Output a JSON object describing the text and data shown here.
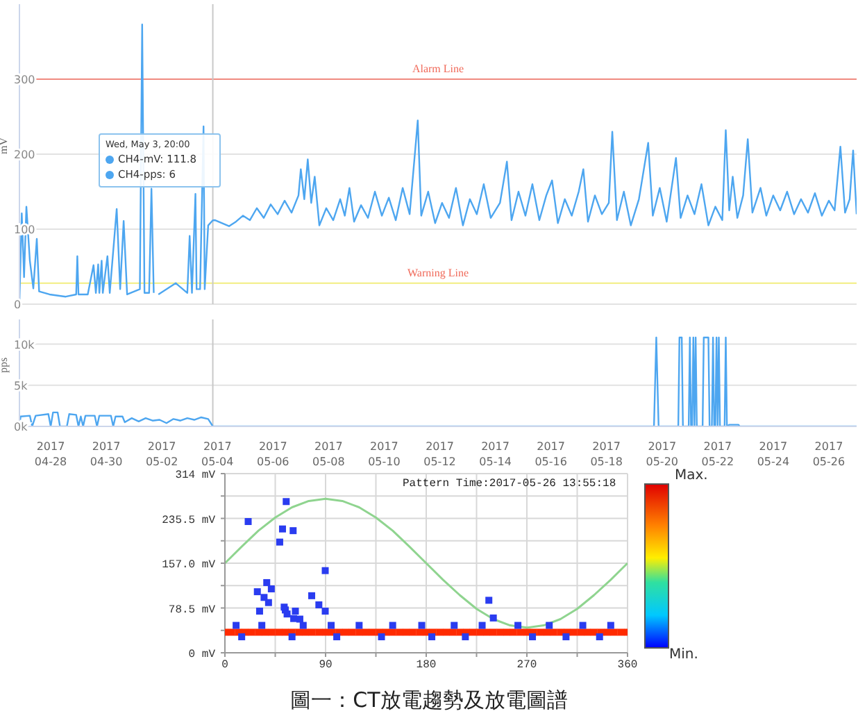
{
  "chart_data": [
    {
      "type": "line",
      "ylabel": "mV",
      "color": "#4da6f0",
      "marker": "none",
      "line_style": "solid",
      "grid": "y",
      "tick_labels": "y",
      "x": [
        "2017-04-26T21:00",
        "2017-04-26T23:00",
        "2017-04-27T01:00",
        "2017-04-27T03:00",
        "2017-04-27T06:00",
        "2017-04-27T09:00",
        "2017-04-27T12:00",
        "2017-04-27T14:00",
        "2017-04-27T23:00",
        "2017-04-28T13:00",
        "2017-04-28T22:00",
        "2017-04-28T23:00",
        "2017-04-29T00:00",
        "2017-04-29T08:00",
        "2017-04-29T13:00",
        "2017-04-29T15:00",
        "2017-04-29T17:00",
        "2017-04-29T18:00",
        "2017-04-29T20:00",
        "2017-04-29T21:00",
        "2017-04-30T01:00",
        "2017-04-30T03:00",
        "2017-04-30T09:00",
        "2017-04-30T12:00",
        "2017-04-30T15:00",
        "2017-04-30T18:00",
        "2017-05-01T05:00",
        "2017-05-01T07:00",
        "2017-05-01T09:00",
        "2017-05-01T13:00",
        "2017-05-01T15:00",
        "2017-05-01T17:00",
        "2017-05-01T19:00",
        "2017-05-01T21:00",
        "2017-05-02T12:00",
        "2017-05-02T22:00",
        "2017-05-03T00:00",
        "2017-05-03T02:00",
        "2017-05-03T05:00",
        "2017-05-03T06:00",
        "2017-05-03T09:00",
        "2017-05-03T12:00",
        "2017-05-03T13:00",
        "2017-05-03T16:00",
        "2017-05-03T20:00",
        "2017-05-03T22:00",
        "2017-05-04T04:00",
        "2017-05-04T10:00",
        "2017-05-04T16:00",
        "2017-05-04T22:00",
        "2017-05-05T04:00",
        "2017-05-05T10:00",
        "2017-05-05T16:00",
        "2017-05-05T22:00",
        "2017-05-06T04:00",
        "2017-05-06T10:00",
        "2017-05-06T16:00",
        "2017-05-06T22:00",
        "2017-05-07T00:00",
        "2017-05-07T03:00",
        "2017-05-07T06:00",
        "2017-05-07T09:00",
        "2017-05-07T12:00",
        "2017-05-07T16:00",
        "2017-05-07T22:00",
        "2017-05-08T04:00",
        "2017-05-08T10:00",
        "2017-05-08T14:00",
        "2017-05-08T18:00",
        "2017-05-08T22:00",
        "2017-05-09T04:00",
        "2017-05-09T10:00",
        "2017-05-09T16:00",
        "2017-05-09T22:00",
        "2017-05-10T04:00",
        "2017-05-10T10:00",
        "2017-05-10T16:00",
        "2017-05-10T22:00",
        "2017-05-11T05:00",
        "2017-05-11T08:00",
        "2017-05-11T14:00",
        "2017-05-11T20:00",
        "2017-05-12T02:00",
        "2017-05-12T08:00",
        "2017-05-12T14:00",
        "2017-05-12T20:00",
        "2017-05-13T02:00",
        "2017-05-13T08:00",
        "2017-05-13T14:00",
        "2017-05-13T20:00",
        "2017-05-14T04:00",
        "2017-05-14T10:00",
        "2017-05-14T14:00",
        "2017-05-14T20:00",
        "2017-05-15T02:00",
        "2017-05-15T08:00",
        "2017-05-15T14:00",
        "2017-05-15T20:00",
        "2017-05-16T01:00",
        "2017-05-16T06:00",
        "2017-05-16T12:00",
        "2017-05-16T18:00",
        "2017-05-17T00:00",
        "2017-05-17T04:00",
        "2017-05-17T08:00",
        "2017-05-17T14:00",
        "2017-05-17T20:00",
        "2017-05-18T02:00",
        "2017-05-18T05:00",
        "2017-05-18T09:00",
        "2017-05-18T15:00",
        "2017-05-18T21:00",
        "2017-05-19T04:00",
        "2017-05-19T12:00",
        "2017-05-19T16:00",
        "2017-05-19T22:00",
        "2017-05-20T04:00",
        "2017-05-20T12:00",
        "2017-05-20T16:00",
        "2017-05-20T22:00",
        "2017-05-21T04:00",
        "2017-05-21T10:00",
        "2017-05-21T16:00",
        "2017-05-21T22:00",
        "2017-05-22T04:00",
        "2017-05-22T07:00",
        "2017-05-22T10:00",
        "2017-05-22T13:00",
        "2017-05-22T17:00",
        "2017-05-22T22:00",
        "2017-05-23T02:00",
        "2017-05-23T06:00",
        "2017-05-23T13:00",
        "2017-05-23T18:00",
        "2017-05-24T00:00",
        "2017-05-24T06:00",
        "2017-05-24T12:00",
        "2017-05-24T18:00",
        "2017-05-25T00:00",
        "2017-05-25T06:00",
        "2017-05-25T12:00",
        "2017-05-25T18:00",
        "2017-05-26T00:00",
        "2017-05-26T05:00",
        "2017-05-26T10:00",
        "2017-05-26T14:00",
        "2017-05-26T18:00",
        "2017-05-26T21:00",
        "2017-05-27T00:00"
      ],
      "values": [
        2,
        121,
        36,
        130,
        58,
        21,
        87,
        17,
        13,
        10,
        13,
        64,
        13,
        13,
        52,
        15,
        53,
        15,
        58,
        15,
        64,
        15,
        127,
        20,
        111,
        13,
        20,
        373,
        15,
        15,
        154,
        15,
        null,
        13,
        28,
        15,
        91,
        15,
        147,
        20,
        20,
        237,
        20,
        105,
        111.8,
        112,
        108,
        104,
        110,
        118,
        112,
        128,
        115,
        133,
        120,
        138,
        122,
        145,
        180,
        140,
        193,
        135,
        170,
        105,
        128,
        112,
        140,
        118,
        155,
        110,
        132,
        115,
        150,
        118,
        142,
        112,
        155,
        120,
        245,
        118,
        150,
        108,
        135,
        115,
        155,
        105,
        140,
        120,
        160,
        115,
        135,
        190,
        112,
        150,
        118,
        160,
        112,
        145,
        165,
        108,
        140,
        118,
        150,
        180,
        110,
        145,
        120,
        135,
        230,
        112,
        150,
        105,
        140,
        215,
        118,
        155,
        110,
        195,
        115,
        145,
        120,
        160,
        105,
        130,
        112,
        232,
        125,
        170,
        115,
        145,
        220,
        122,
        155,
        118,
        145,
        125,
        150,
        120,
        140,
        122,
        148,
        118,
        138,
        125,
        210,
        122,
        140,
        205,
        120
      ],
      "xlim": [
        "2017-04-26T21:00",
        "2017-05-27T00:00"
      ],
      "ylim": [
        0,
        400
      ],
      "yticks": [
        0,
        100,
        200,
        300
      ],
      "ref_lines": [
        {
          "axis": "y",
          "value": 300,
          "label": "Alarm Line",
          "color": "#f08a80"
        },
        {
          "axis": "y",
          "value": 28,
          "label": "Warning Line",
          "color": "#f2ee80"
        },
        {
          "axis": "x",
          "value": "2017-05-03T20:00",
          "color": "#c8c8c8"
        }
      ],
      "annotations": [
        "Wed, May 3, 20:00",
        "CH4-mV: 111.8",
        "CH4-pps: 6"
      ]
    },
    {
      "type": "line",
      "ylabel": "pps",
      "color": "#4da6f0",
      "marker": "none",
      "line_style": "solid",
      "grid": "y",
      "x": [
        "2017-04-26T21:00",
        "2017-04-26T22:00",
        "2017-04-27T06:00",
        "2017-04-27T08:00",
        "2017-04-27T11:00",
        "2017-04-27T22:00",
        "2017-04-28T00:00",
        "2017-04-28T02:00",
        "2017-04-28T06:00",
        "2017-04-28T08:00",
        "2017-04-28T14:00",
        "2017-04-28T16:00",
        "2017-04-28T22:00",
        "2017-04-29T00:00",
        "2017-04-29T02:00",
        "2017-04-29T04:00",
        "2017-04-29T06:00",
        "2017-04-29T14:00",
        "2017-04-29T16:00",
        "2017-04-29T18:00",
        "2017-04-30T04:00",
        "2017-04-30T06:00",
        "2017-04-30T08:00",
        "2017-04-30T14:00",
        "2017-04-30T16:00",
        "2017-04-30T22:00",
        "2017-05-01T04:00",
        "2017-05-01T10:00",
        "2017-05-01T16:00",
        "2017-05-01T22:00",
        "2017-05-02T04:00",
        "2017-05-02T10:00",
        "2017-05-02T16:00",
        "2017-05-02T22:00",
        "2017-05-03T04:00",
        "2017-05-03T10:00",
        "2017-05-03T16:00",
        "2017-05-03T20:00",
        "2017-05-04T00:00",
        "2017-05-19T17:00",
        "2017-05-19T19:00",
        "2017-05-19T21:00",
        "2017-05-20T14:00",
        "2017-05-20T15:00",
        "2017-05-20T17:00",
        "2017-05-20T18:00",
        "2017-05-20T23:00",
        "2017-05-21T00:00",
        "2017-05-21T01:00",
        "2017-05-21T02:00",
        "2017-05-21T03:00",
        "2017-05-21T04:00",
        "2017-05-21T05:00",
        "2017-05-21T06:00",
        "2017-05-21T11:00",
        "2017-05-21T12:00",
        "2017-05-21T16:00",
        "2017-05-21T17:00",
        "2017-05-21T19:00",
        "2017-05-21T20:00",
        "2017-05-21T21:00",
        "2017-05-21T22:00",
        "2017-05-21T23:00",
        "2017-05-22T00:00",
        "2017-05-22T01:00",
        "2017-05-22T02:00",
        "2017-05-22T06:00",
        "2017-05-22T07:00",
        "2017-05-22T08:00",
        "2017-05-22T10:00",
        "2017-05-22T18:00",
        "2017-05-22T19:00",
        "2017-05-27T00:00"
      ],
      "values": [
        0,
        1200,
        1300,
        0,
        1300,
        1500,
        0,
        1700,
        1700,
        0,
        0,
        1500,
        1400,
        0,
        1200,
        0,
        1300,
        1300,
        0,
        1300,
        1300,
        0,
        1200,
        1200,
        500,
        1000,
        600,
        1000,
        700,
        800,
        400,
        900,
        700,
        1000,
        800,
        1100,
        900,
        6,
        0,
        0,
        10800,
        0,
        0,
        10800,
        10800,
        0,
        0,
        10800,
        0,
        0,
        10800,
        0,
        10800,
        0,
        0,
        10800,
        10800,
        0,
        0,
        10800,
        0,
        0,
        10800,
        0,
        10800,
        0,
        0,
        10800,
        0,
        200,
        200,
        0,
        0
      ],
      "xlim": [
        "2017-04-26T21:00",
        "2017-05-27T00:00"
      ],
      "xticks": [
        {
          "value": "2017-04-28",
          "label": "2017 04-28"
        },
        {
          "value": "2017-04-30",
          "label": "2017 04-30"
        },
        {
          "value": "2017-05-02",
          "label": "2017 05-02"
        },
        {
          "value": "2017-05-04",
          "label": "2017 05-04"
        },
        {
          "value": "2017-05-06",
          "label": "2017 05-06"
        },
        {
          "value": "2017-05-08",
          "label": "2017 05-08"
        },
        {
          "value": "2017-05-10",
          "label": "2017 05-10"
        },
        {
          "value": "2017-05-12",
          "label": "2017 05-12"
        },
        {
          "value": "2017-05-14",
          "label": "2017 05-14"
        },
        {
          "value": "2017-05-16",
          "label": "2017 05-16"
        },
        {
          "value": "2017-05-18",
          "label": "2017 05-18"
        },
        {
          "value": "2017-05-20",
          "label": "2017 05-20"
        },
        {
          "value": "2017-05-22",
          "label": "2017 05-22"
        },
        {
          "value": "2017-05-24",
          "label": "2017 05-24"
        },
        {
          "value": "2017-05-26",
          "label": "2017 05-26"
        }
      ],
      "ylim": [
        0,
        13000
      ],
      "yticks": [
        {
          "value": 0,
          "label": "0k"
        },
        {
          "value": 5000,
          "label": "5k"
        },
        {
          "value": 10000,
          "label": "10k"
        }
      ],
      "ref_lines": [
        {
          "axis": "x",
          "value": "2017-05-03T20:00",
          "color": "#c8c8c8"
        }
      ]
    },
    {
      "type": "scatter",
      "grid": true,
      "marker": "square",
      "xlim": [
        0,
        360
      ],
      "xticks": [
        0,
        {
          "value": 45,
          "label": null
        },
        90,
        {
          "value": 135,
          "label": null
        },
        180,
        {
          "value": 225,
          "label": null
        },
        270,
        {
          "value": 315,
          "label": null
        },
        360
      ],
      "ylim": [
        0,
        314
      ],
      "yticks": [
        {
          "value": 0,
          "label": "0 mV"
        },
        {
          "value": 39.25,
          "label": null
        },
        {
          "value": 78.5,
          "label": "78.5 mV"
        },
        {
          "value": 117.75,
          "label": null
        },
        {
          "value": 157,
          "label": "157.0 mV"
        },
        {
          "value": 196.25,
          "label": null
        },
        {
          "value": 235.5,
          "label": "235.5 mV"
        },
        {
          "value": 274.75,
          "label": null
        },
        {
          "value": 314,
          "label": "314 mV"
        }
      ],
      "series": [
        {
          "type": "line",
          "color": "#8fd48f",
          "marker": "none",
          "x": [
            0,
            15,
            30,
            45,
            60,
            75,
            90,
            105,
            120,
            135,
            150,
            165,
            180,
            195,
            210,
            225,
            240,
            255,
            270,
            285,
            300,
            315,
            330,
            345,
            360
          ],
          "values": [
            157,
            186,
            214,
            237,
            255,
            266,
            270,
            266,
            255,
            237,
            214,
            186,
            157,
            128,
            101,
            77,
            59,
            48,
            44,
            48,
            59,
            77,
            101,
            128,
            157
          ]
        },
        {
          "color": "#ff2a00",
          "x": [
            0,
            6,
            12,
            18,
            24,
            30,
            36,
            42,
            48,
            54,
            60,
            66,
            72,
            78,
            84,
            90,
            96,
            102,
            108,
            114,
            120,
            126,
            132,
            138,
            144,
            150,
            156,
            162,
            168,
            174,
            180,
            186,
            192,
            198,
            204,
            210,
            216,
            222,
            228,
            234,
            240,
            246,
            252,
            258,
            264,
            270,
            276,
            282,
            288,
            294,
            300,
            306,
            312,
            318,
            324,
            330,
            336,
            342,
            348,
            354,
            360
          ],
          "values": [
            36,
            36,
            36,
            36,
            36,
            36,
            36,
            36,
            36,
            36,
            36,
            36,
            36,
            36,
            36,
            36,
            36,
            36,
            36,
            36,
            36,
            36,
            36,
            36,
            36,
            36,
            36,
            36,
            36,
            36,
            36,
            36,
            36,
            36,
            36,
            36,
            36,
            36,
            36,
            36,
            36,
            36,
            36,
            36,
            36,
            36,
            36,
            36,
            36,
            36,
            36,
            36,
            36,
            36,
            36,
            36,
            36,
            36,
            36,
            36,
            36
          ]
        },
        {
          "color": "#2a3cf0",
          "x": [
            20.8,
            54.8,
            51.5,
            61,
            49,
            89.7,
            37.4,
            29,
            41.5,
            35,
            77.6,
            39,
            84,
            53,
            54,
            31,
            55.6,
            63,
            67,
            61.5,
            89.7,
            236,
            240,
            10,
            33,
            70,
            95,
            120,
            150,
            176,
            205,
            230,
            262,
            290,
            320,
            345,
            15,
            60,
            100,
            140,
            185,
            215,
            275,
            305,
            335
          ],
          "values": [
            230,
            265,
            217,
            214,
            194,
            144,
            123,
            107,
            112,
            97,
            100,
            88,
            84,
            80,
            75,
            73,
            68,
            73,
            59,
            60,
            73,
            92,
            61,
            48,
            48,
            48,
            48,
            48,
            48,
            48,
            48,
            48,
            48,
            48,
            48,
            48,
            28,
            28,
            28,
            28,
            28,
            28,
            28,
            28,
            28
          ]
        }
      ],
      "annotations": [
        "Pattern Time:2017-05-26 13:55:18",
        "Max.",
        "Min.",
        "圖一：CT放電趨勢及放電圖譜"
      ]
    }
  ]
}
